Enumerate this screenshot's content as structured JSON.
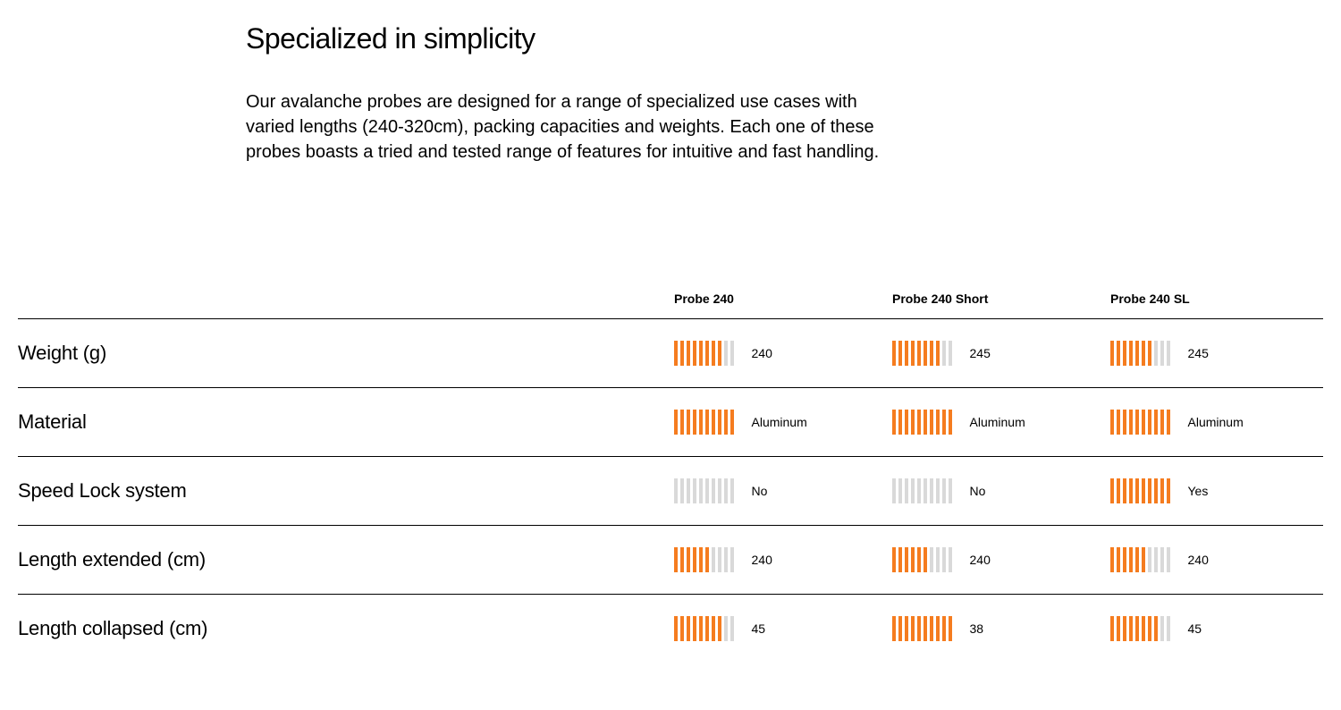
{
  "intro": {
    "heading": "Specialized in simplicity",
    "description": "Our avalanche probes are designed for a range of specialized use cases with varied lengths (240-320cm), packing capacities and weights. Each one of these probes boasts a tried and tested range of features for intuitive and fast handling."
  },
  "table": {
    "type": "comparison-table",
    "bar_segments": 10,
    "bar_color_on": "#f57c1f",
    "bar_color_off": "#d9d9d9",
    "columns": [
      {
        "label": "Probe 240"
      },
      {
        "label": "Probe 240 Short"
      },
      {
        "label": "Probe 240 SL"
      }
    ],
    "rows": [
      {
        "label": "Weight (g)",
        "cells": [
          {
            "value": "240",
            "filled": 8
          },
          {
            "value": "245",
            "filled": 8
          },
          {
            "value": "245",
            "filled": 7
          }
        ]
      },
      {
        "label": "Material",
        "cells": [
          {
            "value": "Aluminum",
            "filled": 10
          },
          {
            "value": "Aluminum",
            "filled": 10
          },
          {
            "value": "Aluminum",
            "filled": 10
          }
        ]
      },
      {
        "label": "Speed Lock system",
        "cells": [
          {
            "value": "No",
            "filled": 0
          },
          {
            "value": "No",
            "filled": 0
          },
          {
            "value": "Yes",
            "filled": 10
          }
        ]
      },
      {
        "label": "Length extended (cm)",
        "cells": [
          {
            "value": "240",
            "filled": 6
          },
          {
            "value": "240",
            "filled": 6
          },
          {
            "value": "240",
            "filled": 6
          }
        ]
      },
      {
        "label": "Length collapsed (cm)",
        "cells": [
          {
            "value": "45",
            "filled": 8
          },
          {
            "value": "38",
            "filled": 10
          },
          {
            "value": "45",
            "filled": 8
          }
        ]
      }
    ]
  }
}
